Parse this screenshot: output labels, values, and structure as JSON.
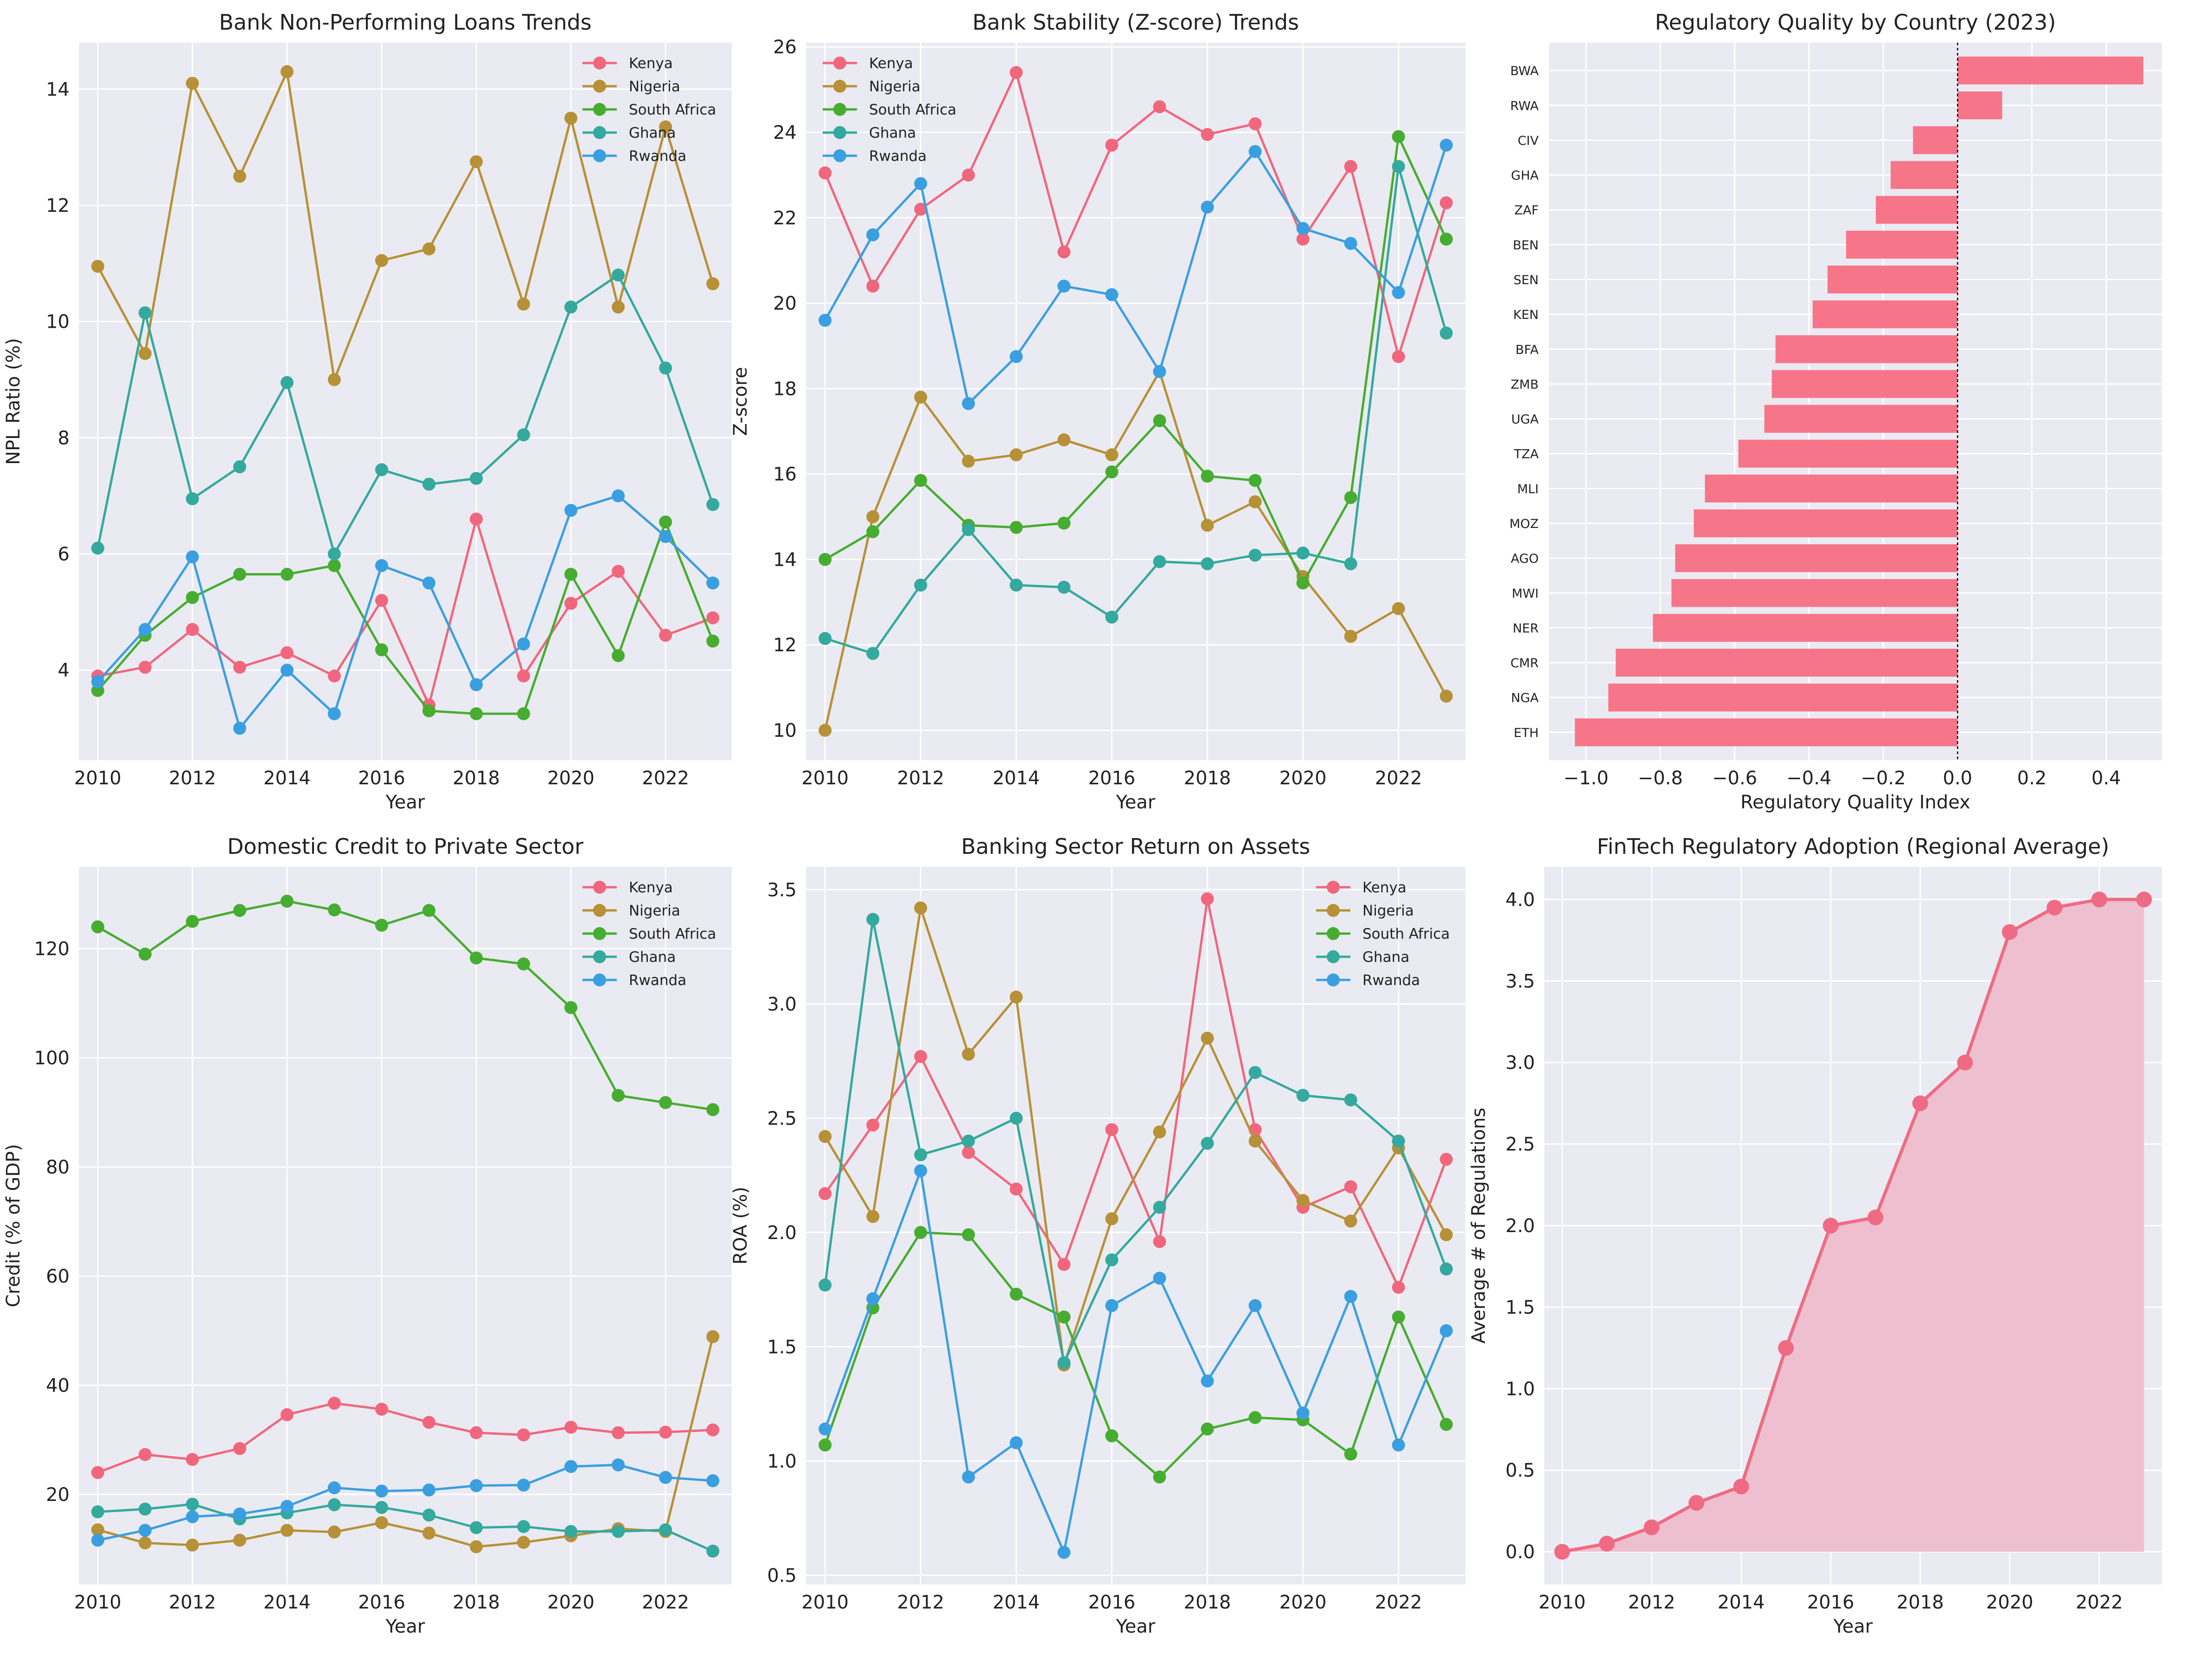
{
  "chart_data": [
    {
      "type": "line",
      "title": "Bank Non-Performing Loans Trends",
      "xlabel": "Year",
      "ylabel": "NPL Ratio (%)",
      "x": [
        2010,
        2011,
        2012,
        2013,
        2014,
        2015,
        2016,
        2017,
        2018,
        2019,
        2020,
        2021,
        2022,
        2023
      ],
      "xlim": [
        2009.6,
        2023.4
      ],
      "ylim": [
        2.45,
        14.8
      ],
      "xticks": [
        2010,
        2012,
        2014,
        2016,
        2018,
        2020,
        2022
      ],
      "yticks": [
        4,
        6,
        8,
        10,
        12,
        14
      ],
      "legend": "top-right",
      "grid": true,
      "series": [
        {
          "name": "Kenya",
          "color": "#f0677d",
          "values": [
            3.9,
            4.05,
            4.7,
            4.05,
            4.3,
            3.9,
            5.2,
            3.4,
            6.6,
            3.9,
            5.15,
            5.7,
            4.6,
            4.9
          ]
        },
        {
          "name": "Nigeria",
          "color": "#b79137",
          "values": [
            10.95,
            9.45,
            14.1,
            12.5,
            14.3,
            9.0,
            11.05,
            11.25,
            12.75,
            10.3,
            13.5,
            10.25,
            13.35,
            10.65
          ]
        },
        {
          "name": "South Africa",
          "color": "#46ad30",
          "values": [
            3.65,
            4.6,
            5.25,
            5.65,
            5.65,
            5.8,
            4.35,
            3.3,
            3.25,
            3.25,
            5.65,
            4.25,
            6.55,
            4.5
          ]
        },
        {
          "name": "Ghana",
          "color": "#34a99e",
          "values": [
            6.1,
            10.15,
            6.95,
            7.5,
            8.95,
            6.0,
            7.45,
            7.2,
            7.3,
            8.05,
            10.25,
            10.8,
            9.2,
            6.85
          ]
        },
        {
          "name": "Rwanda",
          "color": "#3a9fe0",
          "values": [
            3.8,
            4.7,
            5.95,
            3.0,
            4.0,
            3.25,
            5.8,
            5.5,
            3.75,
            4.45,
            6.75,
            7.0,
            6.3,
            5.5
          ]
        }
      ]
    },
    {
      "type": "line",
      "title": "Bank Stability (Z-score) Trends",
      "xlabel": "Year",
      "ylabel": "Z-score",
      "x": [
        2010,
        2011,
        2012,
        2013,
        2014,
        2015,
        2016,
        2017,
        2018,
        2019,
        2020,
        2021,
        2022,
        2023
      ],
      "xlim": [
        2009.6,
        2023.4
      ],
      "ylim": [
        9.3,
        26.1
      ],
      "xticks": [
        2010,
        2012,
        2014,
        2016,
        2018,
        2020,
        2022
      ],
      "yticks": [
        10,
        12,
        14,
        16,
        18,
        20,
        22,
        24,
        26
      ],
      "legend": "top-left",
      "grid": true,
      "series": [
        {
          "name": "Kenya",
          "color": "#f0677d",
          "values": [
            23.05,
            20.4,
            22.2,
            23.0,
            25.4,
            21.2,
            23.7,
            24.6,
            23.95,
            24.2,
            21.5,
            23.2,
            18.75,
            22.35
          ]
        },
        {
          "name": "Nigeria",
          "color": "#b79137",
          "values": [
            10.0,
            15.0,
            17.8,
            16.3,
            16.45,
            16.8,
            16.45,
            18.4,
            14.8,
            15.35,
            13.6,
            12.2,
            12.85,
            10.8
          ]
        },
        {
          "name": "South Africa",
          "color": "#46ad30",
          "values": [
            14.0,
            14.65,
            15.85,
            14.8,
            14.75,
            14.85,
            16.05,
            17.25,
            15.95,
            15.85,
            13.45,
            15.45,
            23.9,
            21.5
          ]
        },
        {
          "name": "Ghana",
          "color": "#34a99e",
          "values": [
            12.15,
            11.8,
            13.4,
            14.7,
            13.4,
            13.35,
            12.65,
            13.95,
            13.9,
            14.1,
            14.15,
            13.9,
            23.2,
            19.3
          ]
        },
        {
          "name": "Rwanda",
          "color": "#3a9fe0",
          "values": [
            19.6,
            21.6,
            22.8,
            17.65,
            18.75,
            20.4,
            20.2,
            18.4,
            22.25,
            23.55,
            21.75,
            21.4,
            20.25,
            23.7
          ]
        }
      ]
    },
    {
      "type": "bar",
      "orientation": "horizontal",
      "title": "Regulatory Quality by Country (2023)",
      "xlabel": "Regulatory Quality Index",
      "ylabel": "",
      "xlim": [
        -1.1,
        0.55
      ],
      "xticks": [
        -1.0,
        -0.8,
        -0.6,
        -0.4,
        -0.2,
        0.0,
        0.2,
        0.4
      ],
      "color": "#f77589",
      "grid": true,
      "categories": [
        "BWA",
        "RWA",
        "CIV",
        "GHA",
        "ZAF",
        "BEN",
        "SEN",
        "KEN",
        "BFA",
        "ZMB",
        "UGA",
        "TZA",
        "MLI",
        "MOZ",
        "AGO",
        "MWI",
        "NER",
        "CMR",
        "NGA",
        "ETH"
      ],
      "values": [
        0.5,
        0.12,
        -0.12,
        -0.18,
        -0.22,
        -0.3,
        -0.35,
        -0.39,
        -0.49,
        -0.5,
        -0.52,
        -0.59,
        -0.68,
        -0.71,
        -0.76,
        -0.77,
        -0.82,
        -0.92,
        -0.94,
        -1.03
      ]
    },
    {
      "type": "line",
      "title": "Domestic Credit to Private Sector",
      "xlabel": "Year",
      "ylabel": "Credit (% of GDP)",
      "x": [
        2010,
        2011,
        2012,
        2013,
        2014,
        2015,
        2016,
        2017,
        2018,
        2019,
        2020,
        2021,
        2022,
        2023
      ],
      "xlim": [
        2009.6,
        2023.4
      ],
      "ylim": [
        3.5,
        135
      ],
      "xticks": [
        2010,
        2012,
        2014,
        2016,
        2018,
        2020,
        2022
      ],
      "yticks": [
        20,
        40,
        60,
        80,
        100,
        120
      ],
      "legend": "top-right",
      "grid": true,
      "series": [
        {
          "name": "Kenya",
          "color": "#f0677d",
          "values": [
            24,
            27.3,
            26.4,
            28.4,
            34.6,
            36.7,
            35.6,
            33.2,
            31.3,
            30.9,
            32.3,
            31.3,
            31.4,
            31.8
          ]
        },
        {
          "name": "Nigeria",
          "color": "#b79137",
          "values": [
            13.5,
            11.1,
            10.7,
            11.6,
            13.4,
            13.1,
            14.8,
            12.9,
            10.4,
            11.2,
            12.4,
            13.7,
            13.2,
            48.9
          ]
        },
        {
          "name": "South Africa",
          "color": "#46ad30",
          "values": [
            124,
            119,
            125,
            127,
            128.7,
            127.1,
            124.3,
            127,
            118.3,
            117.2,
            109.2,
            93.1,
            91.8,
            90.5
          ]
        },
        {
          "name": "Ghana",
          "color": "#34a99e",
          "values": [
            16.8,
            17.3,
            18.2,
            15.5,
            16.6,
            18.1,
            17.6,
            16.2,
            13.9,
            14.1,
            13.2,
            13.2,
            13.5,
            9.6
          ]
        },
        {
          "name": "Rwanda",
          "color": "#3a9fe0",
          "values": [
            11.6,
            13.4,
            15.9,
            16.4,
            17.8,
            21.2,
            20.6,
            20.8,
            21.6,
            21.7,
            25.1,
            25.4,
            23.1,
            22.5
          ]
        }
      ]
    },
    {
      "type": "line",
      "title": "Banking Sector Return on Assets",
      "xlabel": "Year",
      "ylabel": "ROA (%)",
      "x": [
        2010,
        2011,
        2012,
        2013,
        2014,
        2015,
        2016,
        2017,
        2018,
        2019,
        2020,
        2021,
        2022,
        2023
      ],
      "xlim": [
        2009.6,
        2023.4
      ],
      "ylim": [
        0.46,
        3.6
      ],
      "xticks": [
        2010,
        2012,
        2014,
        2016,
        2018,
        2020,
        2022
      ],
      "yticks": [
        0.5,
        1.0,
        1.5,
        2.0,
        2.5,
        3.0,
        3.5
      ],
      "legend": "top-right",
      "grid": true,
      "series": [
        {
          "name": "Kenya",
          "color": "#f0677d",
          "values": [
            2.17,
            2.47,
            2.77,
            2.35,
            2.19,
            1.86,
            2.45,
            1.96,
            3.46,
            2.45,
            2.11,
            2.2,
            1.76,
            2.32
          ]
        },
        {
          "name": "Nigeria",
          "color": "#b79137",
          "values": [
            2.42,
            2.07,
            3.42,
            2.78,
            3.03,
            1.42,
            2.06,
            2.44,
            2.85,
            2.4,
            2.14,
            2.05,
            2.37,
            1.99
          ]
        },
        {
          "name": "South Africa",
          "color": "#46ad30",
          "values": [
            1.07,
            1.67,
            2.0,
            1.99,
            1.73,
            1.63,
            1.11,
            0.93,
            1.14,
            1.19,
            1.18,
            1.03,
            1.63,
            1.16
          ]
        },
        {
          "name": "Ghana",
          "color": "#34a99e",
          "values": [
            1.77,
            3.37,
            2.34,
            2.4,
            2.5,
            1.43,
            1.88,
            2.11,
            2.39,
            2.7,
            2.6,
            2.58,
            2.4,
            1.84
          ]
        },
        {
          "name": "Rwanda",
          "color": "#3a9fe0",
          "values": [
            1.14,
            1.71,
            2.27,
            0.93,
            1.08,
            0.6,
            1.68,
            1.8,
            1.35,
            1.68,
            1.21,
            1.72,
            1.07,
            1.57
          ]
        }
      ]
    },
    {
      "type": "area",
      "title": "FinTech Regulatory Adoption (Regional Average)",
      "xlabel": "Year",
      "ylabel": "Average # of Regulations",
      "x": [
        2010,
        2011,
        2012,
        2013,
        2014,
        2015,
        2016,
        2017,
        2018,
        2019,
        2020,
        2021,
        2022,
        2023
      ],
      "xlim": [
        2009.6,
        2023.4
      ],
      "ylim": [
        -0.2,
        4.2
      ],
      "xticks": [
        2010,
        2012,
        2014,
        2016,
        2018,
        2020,
        2022
      ],
      "yticks": [
        0.0,
        0.5,
        1.0,
        1.5,
        2.0,
        2.5,
        3.0,
        3.5,
        4.0
      ],
      "grid": true,
      "color": "#ef6b84",
      "fill_color": "#eebfcf",
      "values": [
        0,
        0.05,
        0.15,
        0.3,
        0.4,
        1.25,
        2.0,
        2.05,
        2.75,
        3.0,
        3.8,
        3.95,
        4.0,
        4.0
      ]
    }
  ]
}
